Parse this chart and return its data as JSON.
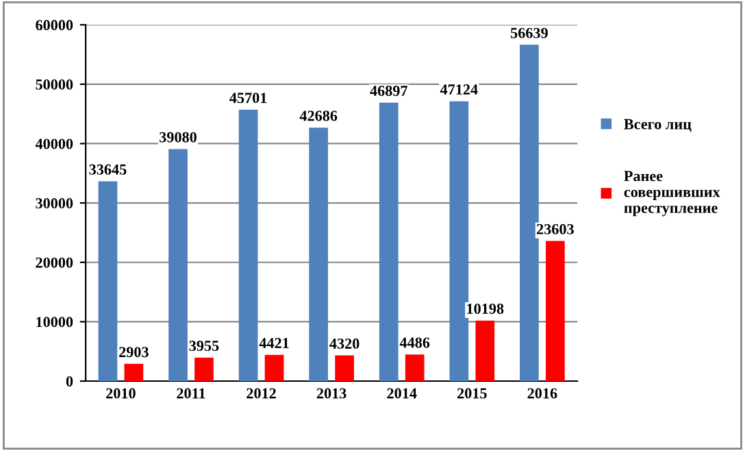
{
  "chart_data": {
    "type": "bar",
    "categories": [
      "2010",
      "2011",
      "2012",
      "2013",
      "2014",
      "2015",
      "2016"
    ],
    "series": [
      {
        "name": "Всего лиц",
        "color": "#4f81bd",
        "values": [
          33645,
          39080,
          45701,
          42686,
          46897,
          47124,
          56639
        ]
      },
      {
        "name": "Ранее совершивших преступление",
        "color": "#ff0000",
        "values": [
          2903,
          3955,
          4421,
          4320,
          4486,
          10198,
          23603
        ]
      }
    ],
    "ylim": [
      0,
      60000
    ],
    "yticks": [
      0,
      10000,
      20000,
      30000,
      40000,
      50000,
      60000
    ],
    "grid": "y",
    "legend": "right",
    "data_labels": true
  }
}
